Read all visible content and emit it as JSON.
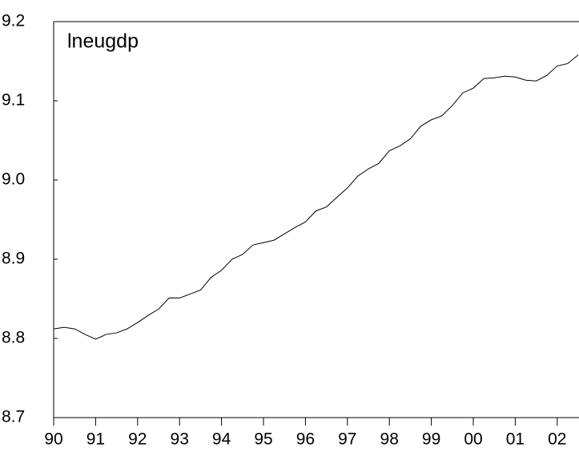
{
  "chart_data": {
    "type": "line",
    "x": [
      1990,
      1990.25,
      1990.5,
      1990.75,
      1991,
      1991.25,
      1991.5,
      1991.75,
      1992,
      1992.25,
      1992.5,
      1992.75,
      1993,
      1993.25,
      1993.5,
      1993.75,
      1994,
      1994.25,
      1994.5,
      1994.75,
      1995,
      1995.25,
      1995.5,
      1995.75,
      1996,
      1996.25,
      1996.5,
      1996.75,
      1997,
      1997.25,
      1997.5,
      1997.75,
      1998,
      1998.25,
      1998.5,
      1998.75,
      1999,
      1999.25,
      1999.5,
      1999.75,
      2000,
      2000.25,
      2000.5,
      2000.75,
      2001,
      2001.25,
      2001.5,
      2001.75,
      2002,
      2002.25,
      2002.5
    ],
    "series": [
      {
        "name": "lneugdp",
        "color": "#000000",
        "values": [
          8.812,
          8.814,
          8.812,
          8.805,
          8.799,
          8.805,
          8.807,
          8.812,
          8.82,
          8.829,
          8.837,
          8.851,
          8.851,
          8.856,
          8.861,
          8.877,
          8.886,
          8.9,
          8.906,
          8.918,
          8.921,
          8.924,
          8.932,
          8.94,
          8.947,
          8.961,
          8.966,
          8.978,
          8.99,
          9.005,
          9.014,
          9.021,
          9.037,
          9.043,
          9.052,
          9.068,
          9.076,
          9.081,
          9.094,
          9.11,
          9.116,
          9.128,
          9.129,
          9.131,
          9.13,
          9.126,
          9.125,
          9.132,
          9.144,
          9.147,
          9.158
        ]
      }
    ],
    "xlim": [
      1990,
      2002.5
    ],
    "xticks": [
      {
        "value": 1990,
        "label": "90"
      },
      {
        "value": 1991,
        "label": "91"
      },
      {
        "value": 1992,
        "label": "92"
      },
      {
        "value": 1993,
        "label": "93"
      },
      {
        "value": 1994,
        "label": "94"
      },
      {
        "value": 1995,
        "label": "95"
      },
      {
        "value": 1996,
        "label": "96"
      },
      {
        "value": 1997,
        "label": "97"
      },
      {
        "value": 1998,
        "label": "98"
      },
      {
        "value": 1999,
        "label": "99"
      },
      {
        "value": 2000,
        "label": "00"
      },
      {
        "value": 2001,
        "label": "01"
      },
      {
        "value": 2002,
        "label": "02"
      }
    ],
    "ylim": [
      8.7,
      9.2
    ],
    "yticks": [
      8.7,
      8.8,
      8.9,
      {
        "value": 9.0,
        "label": "9.0"
      },
      9.1,
      9.2
    ],
    "grid": false
  }
}
